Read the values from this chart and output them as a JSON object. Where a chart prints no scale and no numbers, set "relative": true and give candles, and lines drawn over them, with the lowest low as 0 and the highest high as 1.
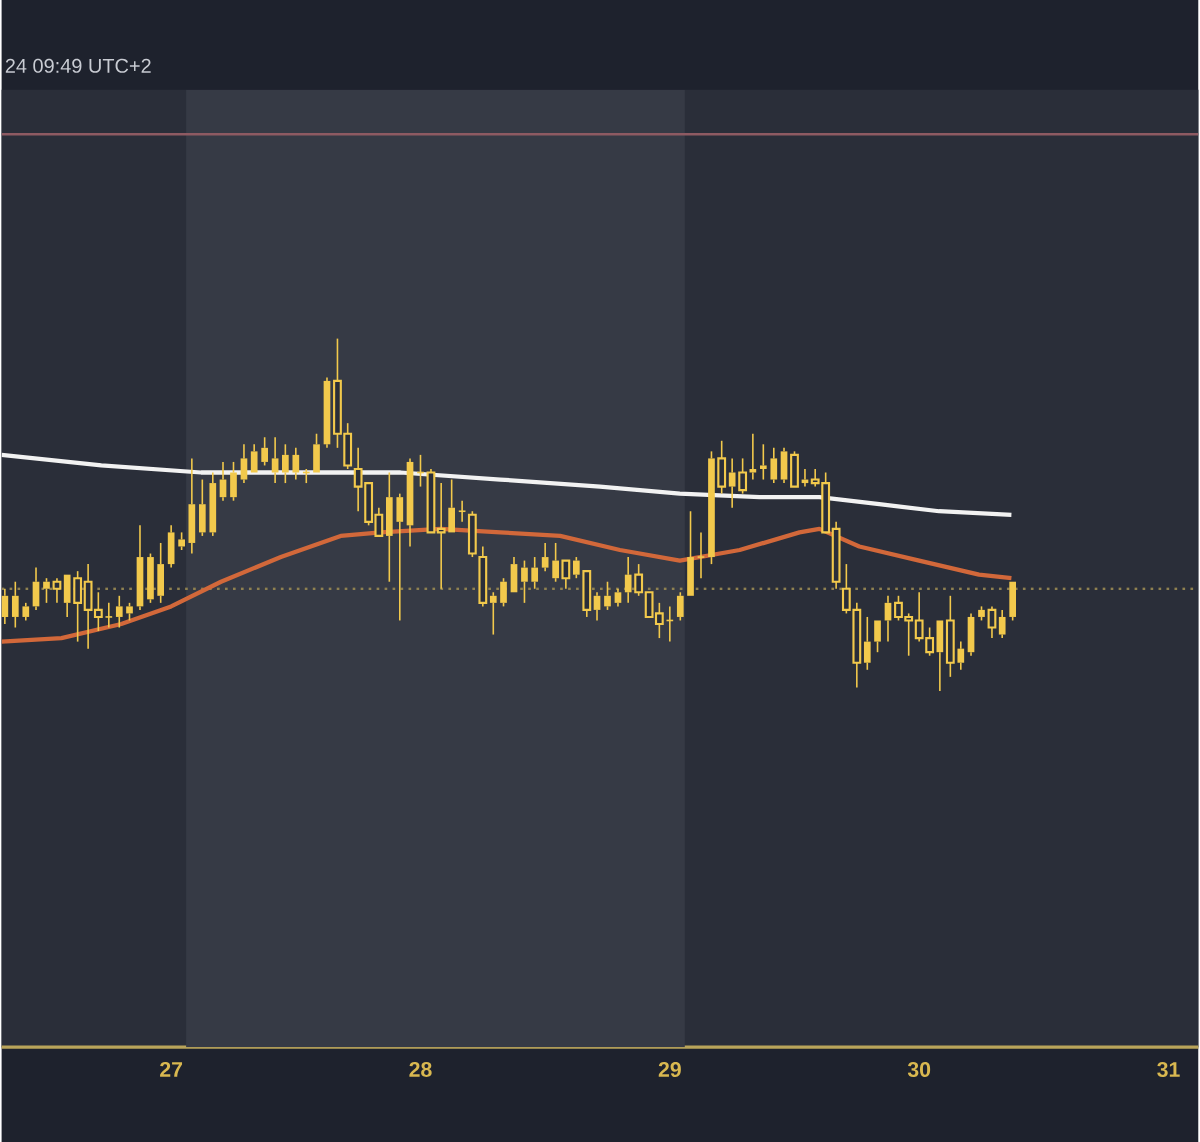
{
  "chart_data": {
    "type": "candlestick",
    "relative": true,
    "xlim": [
      26.32,
      31.12
    ],
    "xticks": [
      27,
      28,
      29,
      30,
      31
    ],
    "annotations": [
      "24 09:49 UTC+2"
    ],
    "bands": [
      {
        "axis": "x",
        "from": 27.06,
        "to": 29.06,
        "color": "#363a45"
      }
    ],
    "ref_lines": [
      {
        "axis": "y",
        "value": 1.58,
        "color": "#8e5a62",
        "line_style": "solid"
      },
      {
        "axis": "y",
        "value": 0.29,
        "color": "#8f8150",
        "line_style": "dotted"
      }
    ],
    "series": [
      {
        "color": "#f2c94c",
        "x": [
          26.333,
          26.375,
          26.417,
          26.458,
          26.5,
          26.542,
          26.583,
          26.625,
          26.667,
          26.708,
          26.75,
          26.792,
          26.833,
          26.875,
          26.917,
          26.958,
          27,
          27.042,
          27.083,
          27.125,
          27.167,
          27.208,
          27.25,
          27.292,
          27.333,
          27.375,
          27.417,
          27.458,
          27.5,
          27.542,
          27.583,
          27.625,
          27.667,
          27.708,
          27.75,
          27.792,
          27.833,
          27.875,
          27.917,
          27.958,
          28,
          28.042,
          28.083,
          28.125,
          28.167,
          28.208,
          28.25,
          28.292,
          28.333,
          28.375,
          28.417,
          28.458,
          28.5,
          28.542,
          28.583,
          28.625,
          28.667,
          28.708,
          28.75,
          28.792,
          28.833,
          28.875,
          28.917,
          28.958,
          29,
          29.042,
          29.083,
          29.125,
          29.167,
          29.208,
          29.25,
          29.292,
          29.333,
          29.375,
          29.417,
          29.458,
          29.5,
          29.542,
          29.583,
          29.625,
          29.667,
          29.708,
          29.75,
          29.792,
          29.833,
          29.875,
          29.917,
          29.958,
          30,
          30.042,
          30.083,
          30.125,
          30.167,
          30.208,
          30.25,
          30.292,
          30.333,
          30.375
        ],
        "ohlc": [
          [
            0.21,
            0.29,
            0.19,
            0.27
          ],
          [
            0.21,
            0.31,
            0.18,
            0.27
          ],
          [
            0.21,
            0.25,
            0.2,
            0.24
          ],
          [
            0.24,
            0.35,
            0.23,
            0.31
          ],
          [
            0.29,
            0.32,
            0.25,
            0.31
          ],
          [
            0.31,
            0.32,
            0.25,
            0.29
          ],
          [
            0.25,
            0.33,
            0.21,
            0.33
          ],
          [
            0.32,
            0.34,
            0.14,
            0.25
          ],
          [
            0.31,
            0.36,
            0.12,
            0.23
          ],
          [
            0.23,
            0.28,
            0.17,
            0.21
          ],
          [
            0.21,
            0.25,
            0.18,
            0.21
          ],
          [
            0.21,
            0.27,
            0.18,
            0.24
          ],
          [
            0.22,
            0.25,
            0.2,
            0.24
          ],
          [
            0.24,
            0.47,
            0.23,
            0.38
          ],
          [
            0.26,
            0.39,
            0.25,
            0.38
          ],
          [
            0.27,
            0.42,
            0.25,
            0.36
          ],
          [
            0.36,
            0.47,
            0.35,
            0.45
          ],
          [
            0.41,
            0.45,
            0.4,
            0.43
          ],
          [
            0.42,
            0.66,
            0.39,
            0.53
          ],
          [
            0.45,
            0.6,
            0.44,
            0.53
          ],
          [
            0.45,
            0.62,
            0.44,
            0.59
          ],
          [
            0.55,
            0.65,
            0.54,
            0.6
          ],
          [
            0.55,
            0.65,
            0.54,
            0.62
          ],
          [
            0.6,
            0.7,
            0.59,
            0.66
          ],
          [
            0.62,
            0.7,
            0.62,
            0.68
          ],
          [
            0.65,
            0.72,
            0.64,
            0.69
          ],
          [
            0.62,
            0.72,
            0.59,
            0.66
          ],
          [
            0.62,
            0.7,
            0.59,
            0.67
          ],
          [
            0.62,
            0.69,
            0.6,
            0.67
          ],
          [
            0.62,
            0.63,
            0.59,
            0.62
          ],
          [
            0.62,
            0.73,
            0.62,
            0.7
          ],
          [
            0.7,
            0.89,
            0.69,
            0.88
          ],
          [
            0.88,
            1,
            0.69,
            0.73
          ],
          [
            0.73,
            0.76,
            0.63,
            0.64
          ],
          [
            0.63,
            0.69,
            0.51,
            0.58
          ],
          [
            0.59,
            0.59,
            0.47,
            0.48
          ],
          [
            0.5,
            0.52,
            0.44,
            0.44
          ],
          [
            0.44,
            0.62,
            0.31,
            0.55
          ],
          [
            0.48,
            0.56,
            0.2,
            0.55
          ],
          [
            0.47,
            0.66,
            0.41,
            0.65
          ],
          [
            0.62,
            0.67,
            0.58,
            0.62
          ],
          [
            0.62,
            0.63,
            0.45,
            0.45
          ],
          [
            0.46,
            0.59,
            0.29,
            0.45
          ],
          [
            0.45,
            0.6,
            0.45,
            0.52
          ],
          [
            0.51,
            0.54,
            0.48,
            0.51
          ],
          [
            0.5,
            0.51,
            0.38,
            0.39
          ],
          [
            0.38,
            0.41,
            0.24,
            0.25
          ],
          [
            0.25,
            0.28,
            0.16,
            0.27
          ],
          [
            0.25,
            0.32,
            0.24,
            0.31
          ],
          [
            0.28,
            0.38,
            0.28,
            0.36
          ],
          [
            0.31,
            0.37,
            0.25,
            0.35
          ],
          [
            0.31,
            0.38,
            0.29,
            0.35
          ],
          [
            0.35,
            0.42,
            0.34,
            0.38
          ],
          [
            0.32,
            0.42,
            0.31,
            0.37
          ],
          [
            0.37,
            0.37,
            0.29,
            0.32
          ],
          [
            0.33,
            0.38,
            0.32,
            0.37
          ],
          [
            0.34,
            0.34,
            0.21,
            0.23
          ],
          [
            0.23,
            0.28,
            0.2,
            0.27
          ],
          [
            0.24,
            0.31,
            0.23,
            0.27
          ],
          [
            0.25,
            0.29,
            0.24,
            0.28
          ],
          [
            0.28,
            0.38,
            0.25,
            0.33
          ],
          [
            0.33,
            0.36,
            0.27,
            0.28
          ],
          [
            0.28,
            0.28,
            0.21,
            0.21
          ],
          [
            0.22,
            0.25,
            0.15,
            0.19
          ],
          [
            0.2,
            0.24,
            0.14,
            0.2
          ],
          [
            0.21,
            0.28,
            0.2,
            0.27
          ],
          [
            0.27,
            0.51,
            0.27,
            0.38
          ],
          [
            0.38,
            0.45,
            0.32,
            0.38
          ],
          [
            0.38,
            0.68,
            0.36,
            0.66
          ],
          [
            0.66,
            0.71,
            0.56,
            0.58
          ],
          [
            0.58,
            0.66,
            0.52,
            0.62
          ],
          [
            0.62,
            0.66,
            0.56,
            0.57
          ],
          [
            0.62,
            0.73,
            0.6,
            0.63
          ],
          [
            0.63,
            0.7,
            0.6,
            0.64
          ],
          [
            0.6,
            0.69,
            0.59,
            0.66
          ],
          [
            0.6,
            0.69,
            0.59,
            0.68
          ],
          [
            0.67,
            0.68,
            0.58,
            0.58
          ],
          [
            0.59,
            0.63,
            0.58,
            0.6
          ],
          [
            0.6,
            0.63,
            0.58,
            0.59
          ],
          [
            0.59,
            0.62,
            0.45,
            0.45
          ],
          [
            0.46,
            0.48,
            0.29,
            0.31
          ],
          [
            0.29,
            0.36,
            0.22,
            0.23
          ],
          [
            0.23,
            0.25,
            0.01,
            0.08
          ],
          [
            0.08,
            0.21,
            0.06,
            0.14
          ],
          [
            0.14,
            0.2,
            0.11,
            0.2
          ],
          [
            0.2,
            0.27,
            0.14,
            0.25
          ],
          [
            0.25,
            0.27,
            0.2,
            0.21
          ],
          [
            0.21,
            0.22,
            0.1,
            0.2
          ],
          [
            0.2,
            0.28,
            0.14,
            0.15
          ],
          [
            0.15,
            0.18,
            0.1,
            0.11
          ],
          [
            0.11,
            0.2,
            0,
            0.2
          ],
          [
            0.2,
            0.27,
            0.04,
            0.08
          ],
          [
            0.08,
            0.14,
            0.06,
            0.12
          ],
          [
            0.11,
            0.22,
            0.1,
            0.21
          ],
          [
            0.21,
            0.24,
            0.2,
            0.23
          ],
          [
            0.23,
            0.24,
            0.15,
            0.18
          ],
          [
            0.16,
            0.23,
            0.15,
            0.21
          ],
          [
            0.21,
            0.31,
            0.2,
            0.31
          ]
        ]
      },
      {
        "type": "line",
        "color": "#f2f2f2",
        "x": [
          26.32,
          26.72,
          27.12,
          27.52,
          27.92,
          28.32,
          28.72,
          29.04,
          29.36,
          29.6,
          29.84,
          30.08,
          30.37
        ],
        "values": [
          0.67,
          0.64,
          0.62,
          0.62,
          0.62,
          0.6,
          0.58,
          0.56,
          0.55,
          0.55,
          0.53,
          0.51,
          0.5
        ]
      },
      {
        "type": "line",
        "color": "#d2683a",
        "x": [
          26.32,
          26.56,
          26.8,
          27,
          27.2,
          27.44,
          27.68,
          27.84,
          28.08,
          28.32,
          28.56,
          28.8,
          29.04,
          29.28,
          29.52,
          29.6,
          29.76,
          30,
          30.24,
          30.37
        ],
        "values": [
          0.14,
          0.15,
          0.19,
          0.24,
          0.31,
          0.38,
          0.44,
          0.45,
          0.46,
          0.45,
          0.44,
          0.4,
          0.37,
          0.4,
          0.45,
          0.46,
          0.41,
          0.37,
          0.33,
          0.32
        ]
      }
    ]
  }
}
